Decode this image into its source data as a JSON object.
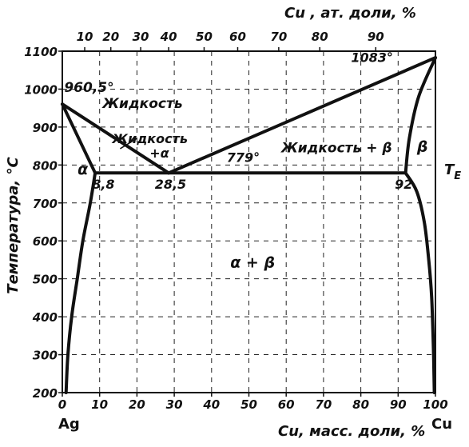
{
  "chart_data": {
    "type": "line",
    "title": "",
    "xlabel": "Cu, масс. доли, %",
    "x2label": "Cu , ат. доли, %",
    "ylabel": "Температура, °C",
    "xlim": [
      0,
      100
    ],
    "ylim": [
      200,
      1100
    ],
    "grid": true,
    "x_ticks": [
      "0",
      "10",
      "20",
      "30",
      "40",
      "50",
      "60",
      "70",
      "80",
      "90",
      "100"
    ],
    "x2_ticks": [
      {
        "label": "10",
        "at": 6
      },
      {
        "label": "20",
        "at": 13
      },
      {
        "label": "30",
        "at": 21
      },
      {
        "label": "40",
        "at": 28.5
      },
      {
        "label": "50",
        "at": 38
      },
      {
        "label": "60",
        "at": 47
      },
      {
        "label": "70",
        "at": 58
      },
      {
        "label": "80",
        "at": 69
      },
      {
        "label": "90",
        "at": 84
      }
    ],
    "y_ticks": [
      "200",
      "300",
      "400",
      "500",
      "600",
      "700",
      "800",
      "900",
      "1000",
      "1100"
    ],
    "end_labels": {
      "left": "Ag",
      "right": "Cu"
    },
    "series": [
      {
        "key": "liquidus_left",
        "points": [
          [
            0,
            960.5
          ],
          [
            28.5,
            779
          ]
        ]
      },
      {
        "key": "liquidus_right",
        "points": [
          [
            28.5,
            779
          ],
          [
            100,
            1083
          ]
        ]
      },
      {
        "key": "solidus_left",
        "points": [
          [
            0,
            960.5
          ],
          [
            8.8,
            779
          ]
        ]
      },
      {
        "key": "solvus_left",
        "points": [
          [
            8.8,
            779
          ],
          [
            7.5,
            700
          ],
          [
            5.5,
            600
          ],
          [
            4,
            500
          ],
          [
            2.5,
            400
          ],
          [
            1.5,
            300
          ],
          [
            1,
            200
          ]
        ]
      },
      {
        "key": "eutectic",
        "points": [
          [
            8.8,
            779
          ],
          [
            92,
            779
          ]
        ]
      },
      {
        "key": "solidus_right",
        "points": [
          [
            92,
            779
          ],
          [
            93,
            870
          ],
          [
            95.5,
            980
          ],
          [
            100,
            1083
          ]
        ]
      },
      {
        "key": "solvus_right",
        "points": [
          [
            92,
            779
          ],
          [
            95,
            730
          ],
          [
            97,
            650
          ],
          [
            98.2,
            550
          ],
          [
            99,
            450
          ],
          [
            99.5,
            300
          ],
          [
            99.7,
            200
          ]
        ]
      }
    ],
    "annotations": [
      {
        "text": "960,5°",
        "x": 0.5,
        "y": 992
      },
      {
        "text": "1083°",
        "x": 83,
        "y": 1072
      },
      {
        "text": "Жидкость",
        "x": 21.5,
        "y": 950
      },
      {
        "text": "Жидкость",
        "x": 23.5,
        "y": 858
      },
      {
        "text": "+α",
        "x": 26,
        "y": 820
      },
      {
        "text": "779°",
        "x": 48.5,
        "y": 808
      },
      {
        "text": "Жидкость + β",
        "x": 73.5,
        "y": 833
      },
      {
        "text": "β",
        "x": 96.5,
        "y": 835
      },
      {
        "text": "α",
        "x": 5.5,
        "y": 775
      },
      {
        "text": "8,8",
        "x": 11,
        "y": 737
      },
      {
        "text": "28,5",
        "x": 29,
        "y": 737
      },
      {
        "text": "92",
        "x": 91.5,
        "y": 737
      },
      {
        "text": "α + β",
        "x": 51,
        "y": 530
      }
    ],
    "side_label": "T",
    "side_label_sub": "E"
  }
}
